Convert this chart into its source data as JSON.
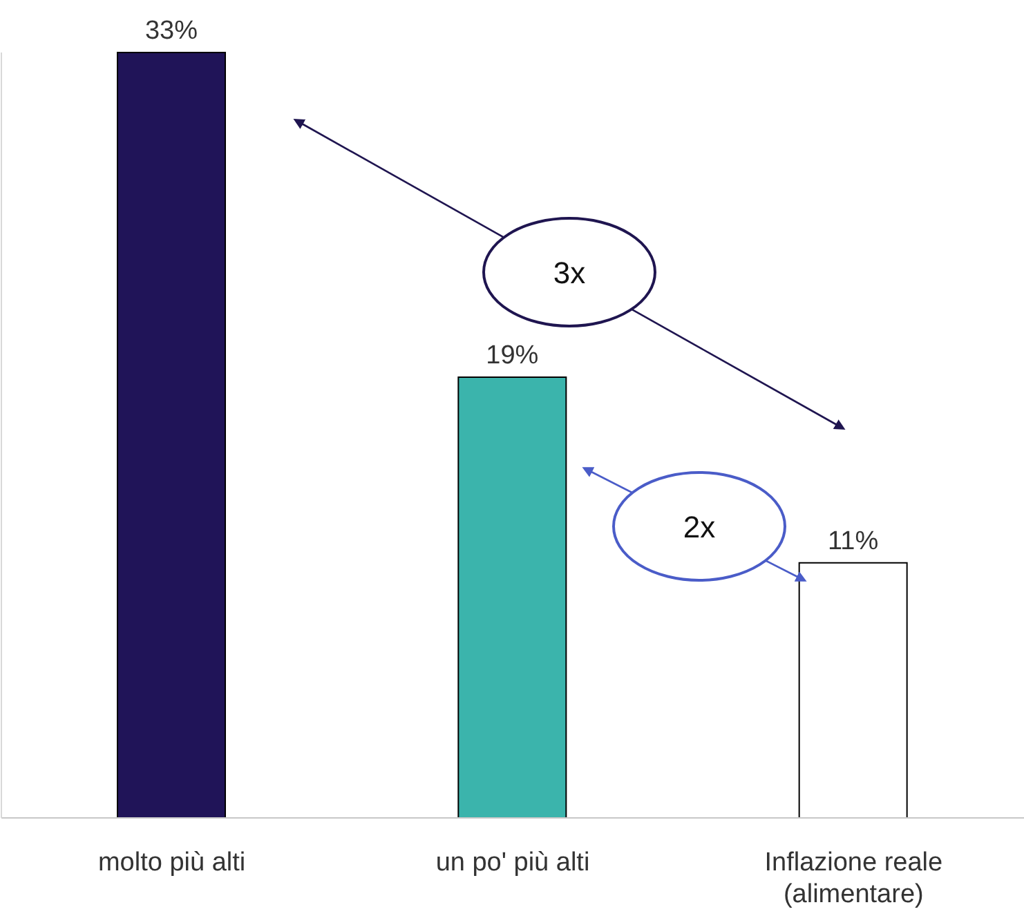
{
  "chart_data": {
    "type": "bar",
    "categories": [
      "molto più alti",
      "un po' più alti",
      "Inflazione reale (alimentare)"
    ],
    "values": [
      33,
      19,
      11
    ],
    "colors": [
      "#201458",
      "#3bb4ac",
      "#ffffff"
    ],
    "value_labels": [
      "33%",
      "19%",
      "11%"
    ],
    "annotations": [
      "3x",
      "2x"
    ],
    "grid": false,
    "legend": false
  }
}
